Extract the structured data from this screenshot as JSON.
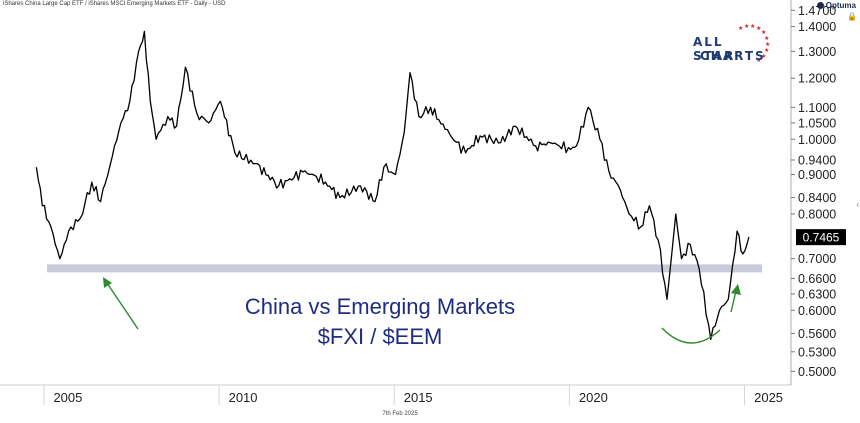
{
  "header": {
    "series_title": "iShares China Large Cap ETF / iShares MSCI Emerging Markets ETF - Daily - USD",
    "brand": "Optuma"
  },
  "logo": {
    "line1": "ALL STAR",
    "line2": "CHARTS"
  },
  "annotation": {
    "title_line1": "China vs Emerging Markets",
    "title_line2": "$FXI / $EEM"
  },
  "footer": {
    "date": "7th Feb 2025"
  },
  "colors": {
    "line": "#000000",
    "support_band": "#c9cbdd",
    "arrow": "#2e8b2e",
    "title": "#1f2d80",
    "logo": "#1f3b73",
    "stars": "#d3232a",
    "price_badge_bg": "#000000",
    "price_badge_text": "#ffffff"
  },
  "chart_data": {
    "type": "line",
    "title": "",
    "xlabel": "",
    "ylabel": "",
    "y_scale": "log",
    "xlim": [
      "2003-10-01",
      "2026-04-30"
    ],
    "ylim": [
      0.48,
      1.48
    ],
    "x_ticks": [
      "2005",
      "2010",
      "2015",
      "2020",
      "2025"
    ],
    "y_ticks": [
      "1.4700",
      "1.4000",
      "1.3000",
      "1.2000",
      "1.1000",
      "1.0500",
      "1.0000",
      "0.9400",
      "0.9000",
      "0.8400",
      "0.8000",
      "0.7465",
      "0.7000",
      "0.6600",
      "0.6300",
      "0.6000",
      "0.5600",
      "0.5300",
      "0.5000"
    ],
    "last_value": "0.7465",
    "support_level": 0.68,
    "series": [
      {
        "x": [
          "2004-10",
          "2004-12",
          "2005-03",
          "2005-06",
          "2005-09",
          "2006-01",
          "2006-05",
          "2006-08",
          "2006-12",
          "2007-03",
          "2007-06",
          "2007-09",
          "2007-11",
          "2008-01",
          "2008-03",
          "2008-07",
          "2008-10",
          "2009-01",
          "2009-05",
          "2009-09",
          "2010-01",
          "2010-06",
          "2011-01",
          "2011-09",
          "2012-06",
          "2013-01",
          "2013-06",
          "2014-01",
          "2014-06",
          "2014-09",
          "2015-01",
          "2015-04",
          "2015-06",
          "2015-09",
          "2016-01",
          "2016-06",
          "2017-01",
          "2017-06",
          "2018-01",
          "2018-06",
          "2019-01",
          "2019-06",
          "2020-01",
          "2020-03",
          "2020-07",
          "2020-11",
          "2021-02",
          "2021-06",
          "2021-09",
          "2022-01",
          "2022-04",
          "2022-07",
          "2022-10",
          "2023-01",
          "2023-03",
          "2023-06",
          "2023-09",
          "2024-01",
          "2024-04",
          "2024-07",
          "2024-10",
          "2024-12",
          "2025-02"
        ],
        "values": [
          0.92,
          0.82,
          0.77,
          0.7,
          0.76,
          0.79,
          0.88,
          0.83,
          0.95,
          1.05,
          1.12,
          1.3,
          1.38,
          1.12,
          1.0,
          1.07,
          1.04,
          1.24,
          1.08,
          1.05,
          1.12,
          0.96,
          0.93,
          0.87,
          0.91,
          0.88,
          0.84,
          0.87,
          0.83,
          0.92,
          0.9,
          1.02,
          1.22,
          1.07,
          1.1,
          1.03,
          0.96,
          1.01,
          0.99,
          1.04,
          0.98,
          0.99,
          0.97,
          0.98,
          1.1,
          1.0,
          0.91,
          0.86,
          0.8,
          0.77,
          0.82,
          0.74,
          0.62,
          0.8,
          0.7,
          0.73,
          0.68,
          0.55,
          0.6,
          0.62,
          0.76,
          0.71,
          0.7465
        ]
      }
    ]
  }
}
